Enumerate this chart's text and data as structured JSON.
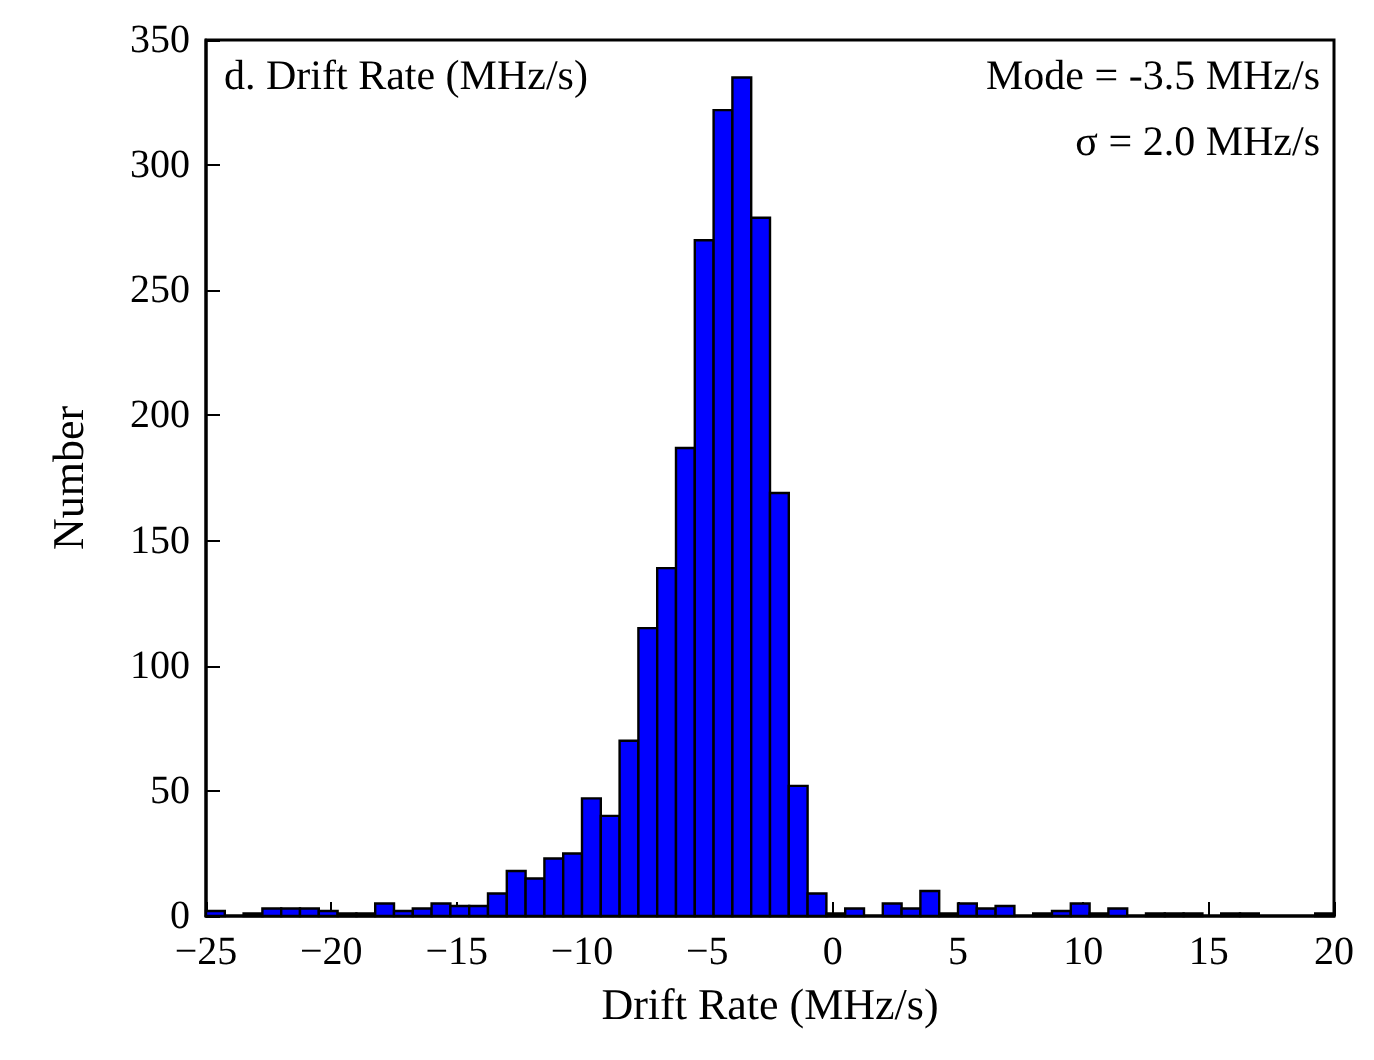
{
  "chart_data": {
    "type": "histogram",
    "xlabel": "Drift Rate (MHz/s)",
    "ylabel": "Number",
    "annotations": [
      "d. Drift Rate (MHz/s)",
      "Mode = -3.5 MHz/s",
      "σ = 2.0 MHz/s"
    ],
    "bins": [
      -25,
      -24.25,
      -23.5,
      -22.75,
      -22,
      -21.25,
      -20.5,
      -19.75,
      -19,
      -18.25,
      -17.5,
      -16.75,
      -16,
      -15.25,
      -14.5,
      -13.75,
      -13,
      -12.25,
      -11.5,
      -10.75,
      -10,
      -9.25,
      -8.5,
      -7.75,
      -7,
      -6.25,
      -5.5,
      -4.75,
      -4,
      -3.25,
      -2.5,
      -1.75,
      -1,
      -0.25,
      0.5,
      1.25,
      2,
      2.75,
      3.5,
      4.25,
      5,
      5.75,
      6.5,
      7.25,
      8,
      8.75,
      9.5,
      10.25,
      11,
      11.75,
      12.5,
      13.25,
      14,
      14.75,
      15.5,
      16.25,
      17,
      17.75,
      18.5,
      19.25,
      20
    ],
    "values": [
      2,
      0,
      1,
      3,
      3,
      3,
      2,
      1,
      1,
      5,
      2,
      3,
      5,
      4,
      4,
      9,
      18,
      15,
      23,
      25,
      47,
      40,
      70,
      115,
      139,
      187,
      270,
      322,
      335,
      279,
      169,
      52,
      9,
      1,
      3,
      0,
      5,
      3,
      10,
      1,
      5,
      3,
      4,
      0,
      1,
      2,
      5,
      1,
      3,
      0,
      1,
      1,
      1,
      0,
      1,
      1,
      0,
      0,
      0,
      1
    ],
    "color": "#0000ff",
    "xlim": [
      -25,
      20
    ],
    "xticks": [
      -25,
      -20,
      -15,
      -10,
      -5,
      0,
      5,
      10,
      15,
      20
    ],
    "ylim": [
      0,
      350
    ],
    "yticks": [
      0,
      50,
      100,
      150,
      200,
      250,
      300,
      350
    ],
    "grid": false
  }
}
